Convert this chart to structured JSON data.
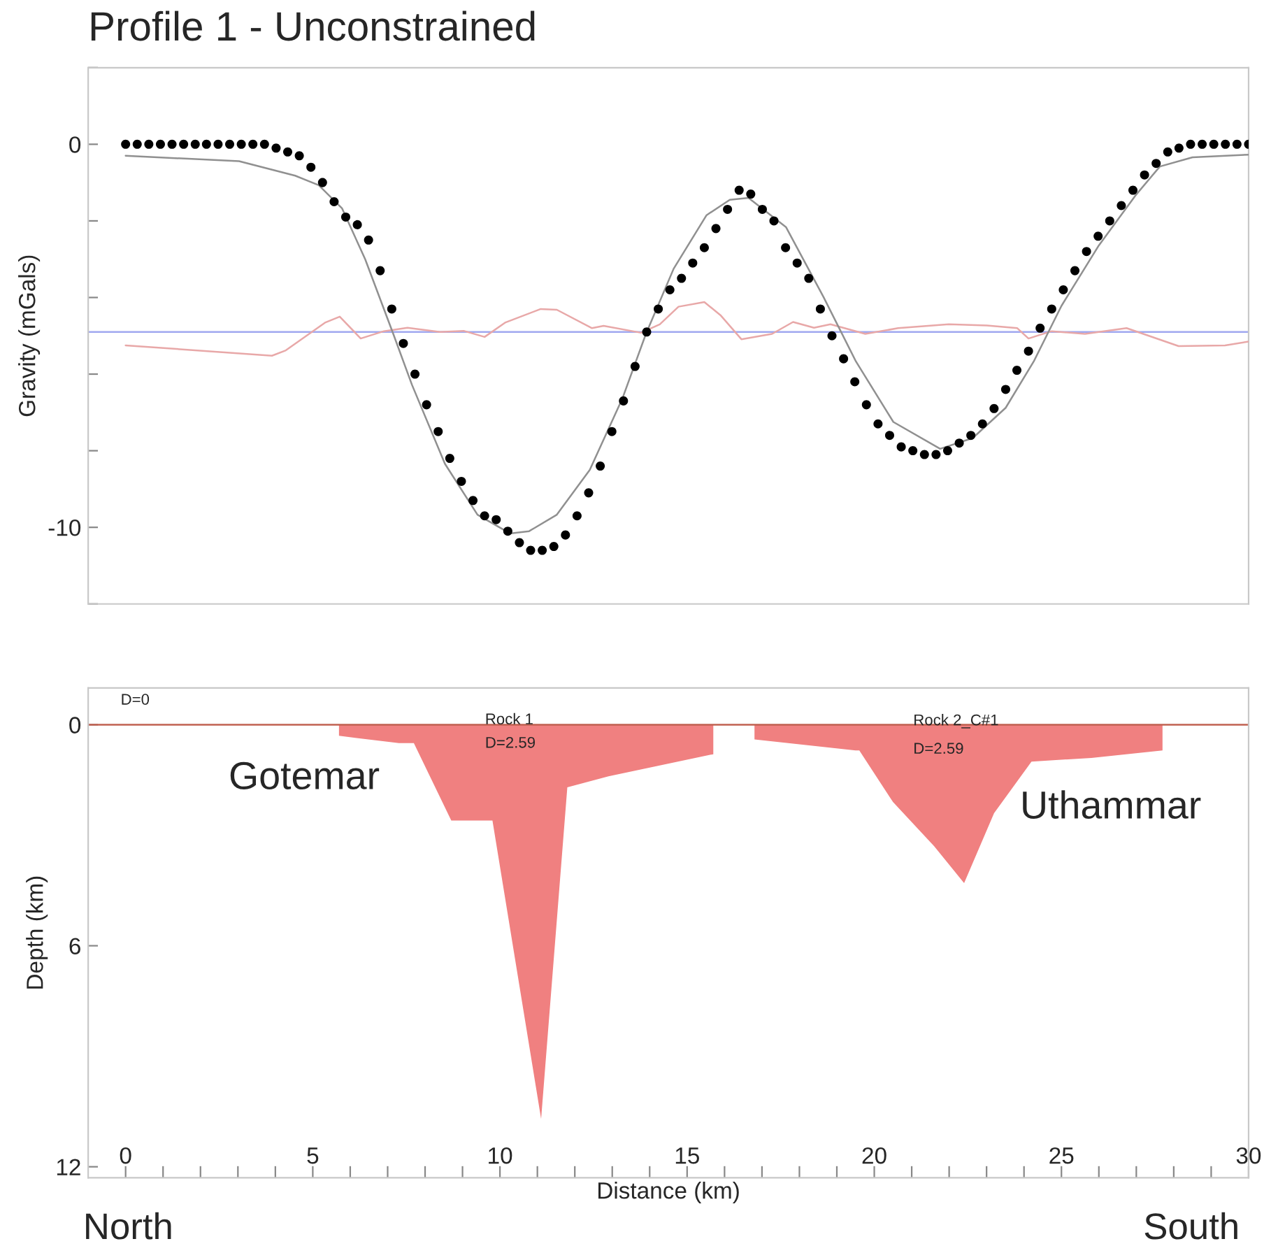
{
  "chart_data": [
    {
      "type": "scatter",
      "title": "Profile 1 - Unconstrained",
      "ylabel": "Gravity (mGals)",
      "xlim": [
        -1,
        30
      ],
      "ylim": [
        -12,
        2
      ],
      "tick_labels": "y",
      "yticks": [
        {
          "value": 2,
          "label": null
        },
        0,
        {
          "value": -2,
          "label": null
        },
        {
          "value": -4,
          "label": null
        },
        {
          "value": -6,
          "label": null
        },
        {
          "value": -8,
          "label": null
        },
        -10,
        {
          "value": -12,
          "label": null
        }
      ],
      "grid": false,
      "legend": false,
      "ref_lines": [
        {
          "axis": "y",
          "value": -4.9,
          "color": "#a0a8f0"
        }
      ],
      "series": [
        {
          "type": "line",
          "color": "#e8a8a8",
          "x": [
            0,
            3.91,
            4.28,
            5.34,
            5.72,
            6.28,
            6.9,
            7.53,
            8.4,
            9.03,
            9.59,
            10.15,
            11.09,
            11.52,
            12.46,
            12.77,
            13.77,
            14.27,
            14.77,
            15.46,
            15.89,
            16.45,
            17.27,
            17.83,
            18.39,
            18.83,
            19.76,
            20.64,
            21.99,
            23.01,
            23.82,
            24.12,
            24.74,
            25.63,
            26.74,
            28.13,
            29.37,
            30
          ],
          "values": [
            -5.25,
            -5.52,
            -5.38,
            -4.65,
            -4.5,
            -5.07,
            -4.88,
            -4.79,
            -4.9,
            -4.87,
            -5.03,
            -4.65,
            -4.3,
            -4.32,
            -4.8,
            -4.74,
            -4.92,
            -4.7,
            -4.24,
            -4.12,
            -4.46,
            -5.09,
            -4.95,
            -4.64,
            -4.79,
            -4.7,
            -4.95,
            -4.8,
            -4.7,
            -4.73,
            -4.8,
            -5.07,
            -4.88,
            -4.95,
            -4.8,
            -5.27,
            -5.25,
            -5.15
          ]
        },
        {
          "type": "line",
          "color": "#909090",
          "x": [
            0,
            3.03,
            4.53,
            5.16,
            5.78,
            6.4,
            7.15,
            7.65,
            8.53,
            9.4,
            10.27,
            10.78,
            11.52,
            12.4,
            13.27,
            13.9,
            14.64,
            15.52,
            16.14,
            16.64,
            17.64,
            18.64,
            19.51,
            20.51,
            21.76,
            22.63,
            23.51,
            24.26,
            25.0,
            26.0,
            27.0,
            27.63,
            28.5,
            30
          ],
          "values": [
            -0.3,
            -0.44,
            -0.82,
            -1.07,
            -1.67,
            -3.0,
            -4.95,
            -6.28,
            -8.34,
            -9.67,
            -10.16,
            -10.1,
            -9.67,
            -8.5,
            -6.64,
            -4.95,
            -3.25,
            -1.85,
            -1.45,
            -1.4,
            -2.16,
            -3.98,
            -5.67,
            -7.25,
            -7.95,
            -7.67,
            -6.88,
            -5.67,
            -4.22,
            -2.64,
            -1.31,
            -0.58,
            -0.34,
            -0.27
          ]
        },
        {
          "color": "#000000",
          "marker": "circle",
          "x": [
            0,
            0.31,
            0.62,
            0.93,
            1.24,
            1.55,
            1.86,
            2.16,
            2.47,
            2.78,
            3.09,
            3.4,
            3.71,
            4.02,
            4.33,
            4.64,
            4.95,
            5.26,
            5.57,
            5.88,
            6.19,
            6.49,
            6.8,
            7.11,
            7.42,
            7.73,
            8.04,
            8.35,
            8.66,
            8.97,
            9.28,
            9.59,
            9.9,
            10.21,
            10.52,
            10.82,
            11.13,
            11.44,
            11.75,
            12.06,
            12.37,
            12.68,
            12.99,
            13.3,
            13.61,
            13.92,
            14.23,
            14.54,
            14.85,
            15.15,
            15.46,
            15.77,
            16.08,
            16.39,
            16.7,
            17.01,
            17.32,
            17.63,
            17.94,
            18.25,
            18.56,
            18.87,
            19.18,
            19.48,
            19.79,
            20.1,
            20.41,
            20.72,
            21.03,
            21.34,
            21.65,
            21.96,
            22.27,
            22.58,
            22.89,
            23.2,
            23.51,
            23.81,
            24.12,
            24.43,
            24.74,
            25.05,
            25.36,
            25.67,
            25.98,
            26.29,
            26.6,
            26.91,
            27.22,
            27.53,
            27.84,
            28.14,
            28.45,
            28.76,
            29.07,
            29.38,
            29.69,
            30
          ],
          "values": [
            0.0,
            0.0,
            0.0,
            0.0,
            0.0,
            0.0,
            0.0,
            0.0,
            0.0,
            0.0,
            0.0,
            0.0,
            0.0,
            -0.1,
            -0.2,
            -0.3,
            -0.6,
            -1.0,
            -1.5,
            -1.9,
            -2.1,
            -2.5,
            -3.3,
            -4.3,
            -5.2,
            -6.0,
            -6.8,
            -7.5,
            -8.2,
            -8.8,
            -9.3,
            -9.7,
            -9.8,
            -10.1,
            -10.4,
            -10.6,
            -10.6,
            -10.5,
            -10.2,
            -9.7,
            -9.1,
            -8.4,
            -7.5,
            -6.7,
            -5.8,
            -4.9,
            -4.3,
            -3.8,
            -3.5,
            -3.1,
            -2.7,
            -2.2,
            -1.7,
            -1.2,
            -1.3,
            -1.7,
            -2.0,
            -2.7,
            -3.1,
            -3.5,
            -4.3,
            -5.0,
            -5.6,
            -6.2,
            -6.8,
            -7.3,
            -7.6,
            -7.9,
            -8.0,
            -8.1,
            -8.1,
            -8.0,
            -7.8,
            -7.6,
            -7.3,
            -6.9,
            -6.4,
            -5.9,
            -5.4,
            -4.8,
            -4.3,
            -3.8,
            -3.3,
            -2.8,
            -2.4,
            -2.0,
            -1.6,
            -1.2,
            -0.8,
            -0.5,
            -0.2,
            -0.1,
            0.0,
            0.0,
            0.0,
            0.0,
            0.0,
            0.0
          ]
        }
      ]
    },
    {
      "type": "area",
      "xlabel": "Distance (km)",
      "ylabel": "Depth (km)",
      "xlim": [
        -1,
        30
      ],
      "ylim": [
        12.3,
        -1
      ],
      "xticks": [
        0,
        {
          "value": 1,
          "label": null
        },
        {
          "value": 2,
          "label": null
        },
        {
          "value": 3,
          "label": null
        },
        {
          "value": 4,
          "label": null
        },
        5,
        {
          "value": 6,
          "label": null
        },
        {
          "value": 7,
          "label": null
        },
        {
          "value": 8,
          "label": null
        },
        {
          "value": 9,
          "label": null
        },
        10,
        {
          "value": 11,
          "label": null
        },
        {
          "value": 12,
          "label": null
        },
        {
          "value": 13,
          "label": null
        },
        {
          "value": 14,
          "label": null
        },
        15,
        {
          "value": 16,
          "label": null
        },
        {
          "value": 17,
          "label": null
        },
        {
          "value": 18,
          "label": null
        },
        {
          "value": 19,
          "label": null
        },
        20,
        {
          "value": 21,
          "label": null
        },
        {
          "value": 22,
          "label": null
        },
        {
          "value": 23,
          "label": null
        },
        {
          "value": 24,
          "label": null
        },
        25,
        {
          "value": 26,
          "label": null
        },
        {
          "value": 27,
          "label": null
        },
        {
          "value": 28,
          "label": null
        },
        {
          "value": 29,
          "label": null
        },
        30
      ],
      "yticks": [
        0,
        6,
        12
      ],
      "grid": false,
      "legend": false,
      "ref_lines": [
        {
          "axis": "y",
          "value": 0,
          "color": "#c06050"
        }
      ],
      "series": [
        {
          "color": "#f08080",
          "x": [
            5.7,
            7.3,
            7.7,
            8.7,
            9.8,
            11.1,
            11.8,
            12.9,
            15.7
          ],
          "values": [
            0.3,
            0.5,
            0.5,
            2.6,
            2.6,
            10.7,
            1.7,
            1.4,
            0.8
          ]
        },
        {
          "color": "#f08080",
          "x": [
            16.8,
            19.5,
            19.6,
            20.5,
            21.6,
            22.4,
            23.2,
            24.2,
            25.8,
            27.7
          ],
          "values": [
            0.4,
            0.7,
            0.7,
            2.1,
            3.3,
            4.3,
            2.4,
            1.0,
            0.9,
            0.7
          ]
        }
      ],
      "annotations": [
        "D=0",
        "Rock 1",
        "D=2.59",
        "Rock 2_C#1",
        "D=2.59",
        "Gotemar",
        "Uthammar",
        "North",
        "South"
      ]
    }
  ]
}
